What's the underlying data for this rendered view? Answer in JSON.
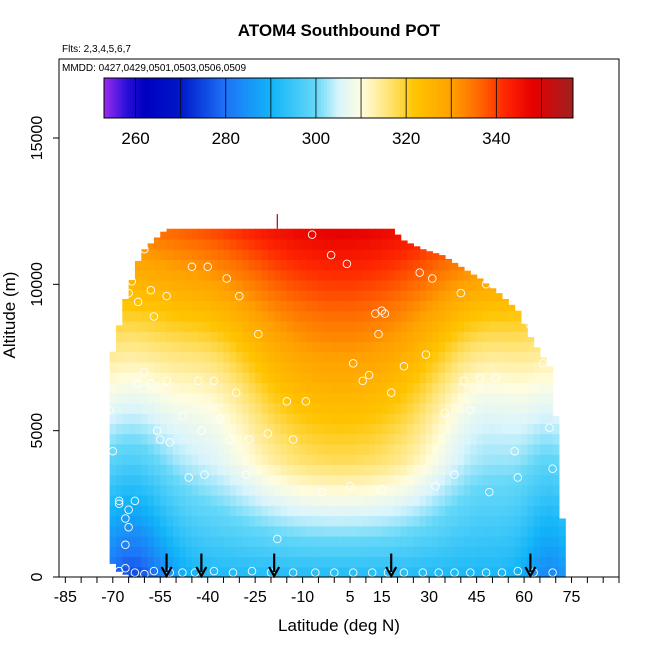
{
  "chart_data": {
    "type": "heatmap",
    "title": "ATOM4 Southbound POT",
    "flights_note": "Flts: 2,3,4,5,6,7",
    "dates_note": "MMDD: 0427,0429,0501,0503,0506,0509",
    "xlabel": "Latitude (deg N)",
    "ylabel": "Altitude (m)",
    "xlim": [
      -87,
      90
    ],
    "ylim": [
      0,
      17700
    ],
    "x_ticks": [
      -85,
      -70,
      -55,
      -40,
      -25,
      -10,
      5,
      15,
      30,
      45,
      60,
      75
    ],
    "x_tick_labels": [
      "-85",
      "-70",
      "-55",
      "-40",
      "-25",
      "-10",
      "5",
      "15",
      "30",
      "45",
      "60",
      "75"
    ],
    "x_minor_step": 5,
    "y_ticks": [
      0,
      5000,
      10000,
      15000
    ],
    "y_tick_labels": [
      "0",
      "5000",
      "10000",
      "15000"
    ],
    "colorbar": {
      "range": [
        253,
        357
      ],
      "boundaries": [
        253,
        260,
        270,
        280,
        290,
        300,
        310,
        320,
        330,
        340,
        350,
        357
      ],
      "ticks": [
        260,
        280,
        300,
        320,
        340
      ],
      "tick_labels": [
        "260",
        "280",
        "300",
        "320",
        "340"
      ],
      "palette": [
        [
          253,
          "#9a2bf0"
        ],
        [
          258,
          "#2a10d8"
        ],
        [
          262,
          "#0000c0"
        ],
        [
          270,
          "#0018c8"
        ],
        [
          280,
          "#1e74f8"
        ],
        [
          290,
          "#11b4f8"
        ],
        [
          300,
          "#66d8f8"
        ],
        [
          305,
          "#d9f4fc"
        ],
        [
          310,
          "#fffde0"
        ],
        [
          317,
          "#ffe066"
        ],
        [
          322,
          "#ffc400"
        ],
        [
          330,
          "#ffa000"
        ],
        [
          336,
          "#ff6a00"
        ],
        [
          342,
          "#ff2600"
        ],
        [
          348,
          "#e60000"
        ],
        [
          357,
          "#a02020"
        ]
      ]
    },
    "lat_range": [
      -71,
      72
    ],
    "altitude_top_profile": [
      [
        -71,
        5400
      ],
      [
        -70,
        7700
      ],
      [
        -66,
        9500
      ],
      [
        -62,
        10800
      ],
      [
        -60,
        11200
      ],
      [
        -57,
        11500
      ],
      [
        -53,
        11900
      ],
      [
        -30,
        11900
      ],
      [
        -10,
        11900
      ],
      [
        10,
        11900
      ],
      [
        18,
        11900
      ],
      [
        22,
        11500
      ],
      [
        28,
        11200
      ],
      [
        34,
        11000
      ],
      [
        40,
        10600
      ],
      [
        46,
        10200
      ],
      [
        52,
        9700
      ],
      [
        58,
        9100
      ],
      [
        62,
        8200
      ],
      [
        66,
        7500
      ],
      [
        68,
        7200
      ],
      [
        70,
        5500
      ],
      [
        72,
        2000
      ]
    ],
    "altitude_bottom_profile": [
      [
        -71,
        600
      ],
      [
        -68,
        200
      ],
      [
        -64,
        0
      ],
      [
        70,
        0
      ],
      [
        72,
        0
      ]
    ],
    "cell_size": {
      "lat_deg": 2,
      "alt_m": 350
    },
    "transect_samples": [
      [
        -68,
        200
      ],
      [
        -66,
        300
      ],
      [
        -63,
        150
      ],
      [
        -60,
        100
      ],
      [
        -57,
        200
      ],
      [
        -52,
        150
      ],
      [
        -48,
        150
      ],
      [
        -44,
        150
      ],
      [
        -38,
        200
      ],
      [
        -32,
        150
      ],
      [
        -26,
        200
      ],
      [
        -20,
        150
      ],
      [
        -13,
        150
      ],
      [
        -6,
        150
      ],
      [
        0,
        150
      ],
      [
        6,
        150
      ],
      [
        12,
        150
      ],
      [
        17,
        150
      ],
      [
        22,
        150
      ],
      [
        28,
        150
      ],
      [
        33,
        150
      ],
      [
        38,
        150
      ],
      [
        43,
        150
      ],
      [
        48,
        150
      ],
      [
        53,
        150
      ],
      [
        58,
        200
      ],
      [
        63,
        150
      ],
      [
        69,
        150
      ],
      [
        -71,
        5700
      ],
      [
        -70,
        4300
      ],
      [
        -68,
        2500
      ],
      [
        -66,
        2000
      ],
      [
        -65,
        1700
      ],
      [
        -65,
        2300
      ],
      [
        -63,
        2600
      ],
      [
        -62,
        6600
      ],
      [
        -60,
        7000
      ],
      [
        -58,
        6600
      ],
      [
        -56,
        5000
      ],
      [
        -55,
        4700
      ],
      [
        -53,
        6700
      ],
      [
        -52,
        4600
      ],
      [
        -48,
        5500
      ],
      [
        -46,
        3400
      ],
      [
        -43,
        6700
      ],
      [
        -42,
        5000
      ],
      [
        -41,
        3500
      ],
      [
        -38,
        6700
      ],
      [
        -36,
        5400
      ],
      [
        -33,
        4700
      ],
      [
        -31,
        6300
      ],
      [
        -28,
        3500
      ],
      [
        -27,
        4700
      ],
      [
        -24,
        8300
      ],
      [
        -21,
        4900
      ],
      [
        -15,
        6000
      ],
      [
        -13,
        4700
      ],
      [
        -9,
        6000
      ],
      [
        -65,
        9700
      ],
      [
        -64,
        10100
      ],
      [
        -62,
        9400
      ],
      [
        -60,
        11200
      ],
      [
        -58,
        9800
      ],
      [
        -57,
        8900
      ],
      [
        -53,
        9600
      ],
      [
        -45,
        10600
      ],
      [
        -40,
        10600
      ],
      [
        -34,
        10200
      ],
      [
        -30,
        9600
      ],
      [
        -7,
        11700
      ],
      [
        -1,
        11000
      ],
      [
        4,
        10700
      ],
      [
        6,
        7300
      ],
      [
        9,
        6700
      ],
      [
        11,
        6900
      ],
      [
        13,
        9000
      ],
      [
        14,
        8300
      ],
      [
        15,
        9100
      ],
      [
        16,
        9000
      ],
      [
        18,
        6300
      ],
      [
        22,
        7200
      ],
      [
        27,
        10400
      ],
      [
        29,
        7600
      ],
      [
        31,
        10200
      ],
      [
        35,
        5600
      ],
      [
        38,
        3500
      ],
      [
        40,
        9700
      ],
      [
        41,
        6700
      ],
      [
        43,
        5700
      ],
      [
        46,
        6800
      ],
      [
        48,
        10000
      ],
      [
        51,
        6800
      ],
      [
        55,
        9800
      ],
      [
        57,
        4300
      ],
      [
        62,
        8600
      ],
      [
        66,
        7300
      ],
      [
        68,
        5100
      ],
      [
        69,
        3700
      ],
      [
        58,
        3400
      ],
      [
        49,
        2900
      ],
      [
        32,
        3100
      ],
      [
        15,
        3000
      ],
      [
        5,
        3100
      ],
      [
        -18,
        1300
      ],
      [
        -66,
        1100
      ],
      [
        -68,
        2600
      ],
      [
        -4,
        2900
      ]
    ],
    "arrows_latitude": [
      -53,
      -42,
      -19,
      18,
      62
    ],
    "arrow_head_altitude": 0,
    "arrow_tail_altitude": 800,
    "profile_marker": {
      "lat": -18,
      "alt_from": 11900,
      "alt_to": 12400
    }
  }
}
